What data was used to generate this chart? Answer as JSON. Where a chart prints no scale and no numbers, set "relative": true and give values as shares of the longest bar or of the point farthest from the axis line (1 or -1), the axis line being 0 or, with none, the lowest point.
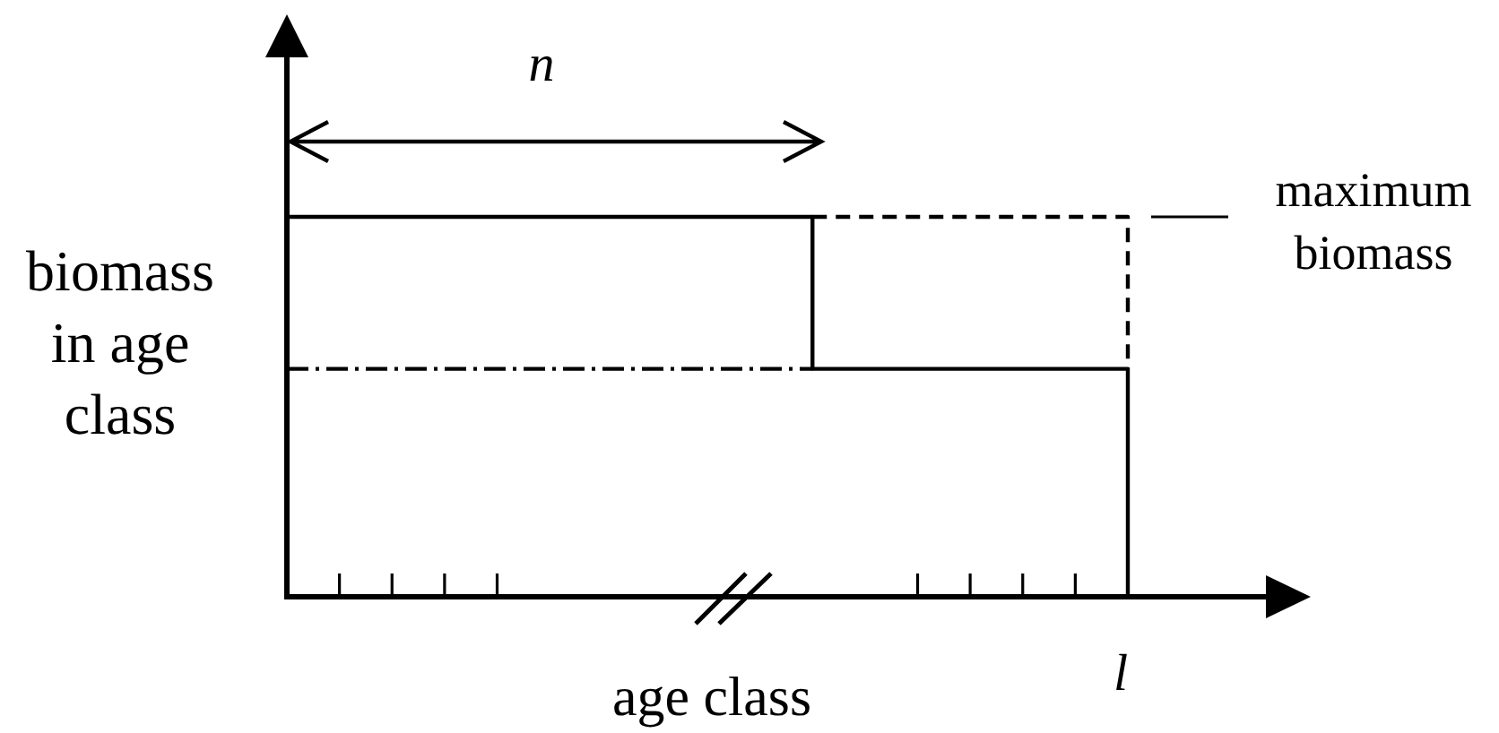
{
  "chart_data": {
    "type": "step",
    "relative": true,
    "xlabel": "age class",
    "ylabel": "biomass in age class",
    "categories": [
      null,
      null,
      null,
      null,
      null,
      null,
      null,
      null,
      null,
      null,
      null,
      null,
      null,
      null,
      null,
      null,
      null
    ],
    "series": [
      {
        "color": "#000000",
        "line_style": "dashdot",
        "values": [
          0.6,
          0.6,
          0.6,
          0.6,
          0.6,
          0.6,
          0.6,
          0.6,
          0.6,
          0.6,
          0.6,
          null,
          null,
          null,
          null,
          null,
          null
        ]
      },
      {
        "color": "#000000",
        "line_style": "dashed",
        "values": [
          null,
          null,
          null,
          null,
          null,
          null,
          null,
          null,
          null,
          null,
          1,
          1,
          1,
          1,
          1,
          1,
          0.6
        ]
      },
      {
        "color": "#000000",
        "line_style": "solid",
        "values": [
          1,
          1,
          1,
          1,
          1,
          1,
          1,
          1,
          1,
          1,
          0.6,
          0.6,
          0.6,
          0.6,
          0.6,
          0.6,
          0
        ]
      }
    ],
    "annotations": [
      "n",
      "l",
      "maximum biomass"
    ]
  }
}
